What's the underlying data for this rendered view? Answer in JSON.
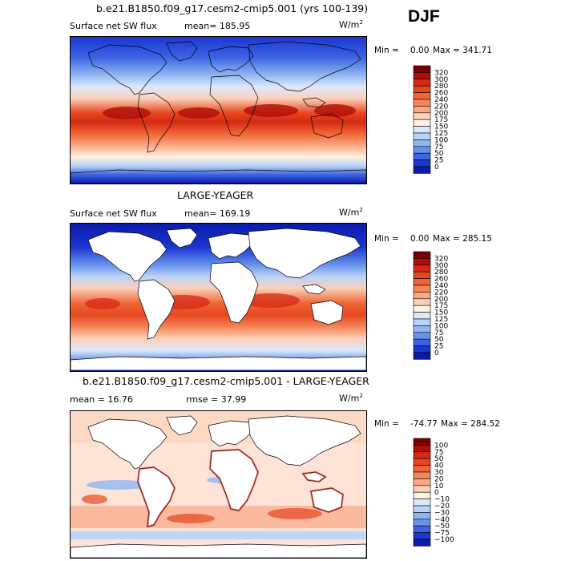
{
  "season": "DJF",
  "panels": [
    {
      "title": "b.e21.B1850.f09_g17.cesm2-cmip5.001 (yrs 100-139)",
      "left_label": "Surface net SW flux",
      "mid_label": "mean= 185.95",
      "units": "W/m",
      "units_sup": "2",
      "min_label": "Min =",
      "min_value": "0.00",
      "max_text": "Max = 341.71",
      "mode": "full"
    },
    {
      "title": "LARGE-YEAGER",
      "left_label": "Surface net SW flux",
      "mid_label": "mean= 169.19",
      "units": "W/m",
      "units_sup": "2",
      "min_label": "Min =",
      "min_value": "0.00",
      "max_text": "Max = 285.15",
      "mode": "ocean"
    },
    {
      "title": "b.e21.B1850.f09_g17.cesm2-cmip5.001 - LARGE-YEAGER",
      "left_label": "mean =  16.76",
      "mid_label": "rmse =  37.99",
      "units": "W/m",
      "units_sup": "2",
      "min_label": "Min =",
      "min_value": "-74.77",
      "max_text": "Max = 284.52",
      "mode": "diff"
    }
  ],
  "colorbars": [
    {
      "labels": [
        "320",
        "300",
        "280",
        "260",
        "240",
        "220",
        "200",
        "175",
        "150",
        "125",
        "100",
        "75",
        "50",
        "25",
        "0"
      ],
      "colors": [
        "#7a0000",
        "#b20d08",
        "#d42a14",
        "#e6461f",
        "#ef6634",
        "#f58457",
        "#f9a784",
        "#fcd0b9",
        "#fff1e4",
        "#dce9fb",
        "#bad4f7",
        "#8fb6f2",
        "#6792ec",
        "#3d63e3",
        "#1b36d1",
        "#0a1aaa"
      ]
    },
    {
      "labels": [
        "320",
        "300",
        "280",
        "260",
        "240",
        "220",
        "200",
        "175",
        "150",
        "125",
        "100",
        "75",
        "50",
        "25",
        "0"
      ],
      "colors": [
        "#7a0000",
        "#b20d08",
        "#d42a14",
        "#e6461f",
        "#ef6634",
        "#f58457",
        "#f9a784",
        "#fcd0b9",
        "#fff1e4",
        "#dce9fb",
        "#bad4f7",
        "#8fb6f2",
        "#6792ec",
        "#3d63e3",
        "#1b36d1",
        "#0a1aaa"
      ]
    },
    {
      "labels": [
        "100",
        "75",
        "50",
        "40",
        "30",
        "20",
        "10",
        "0",
        "−10",
        "−20",
        "−30",
        "−40",
        "−50",
        "−75",
        "−100"
      ],
      "colors": [
        "#7a0000",
        "#b20d08",
        "#d42a14",
        "#e6461f",
        "#ef6634",
        "#f58457",
        "#f9a784",
        "#fcd0b9",
        "#fff1e4",
        "#dce9fb",
        "#bad4f7",
        "#8fb6f2",
        "#6792ec",
        "#3d63e3",
        "#1b36d1",
        "#0a1aaa"
      ]
    }
  ]
}
